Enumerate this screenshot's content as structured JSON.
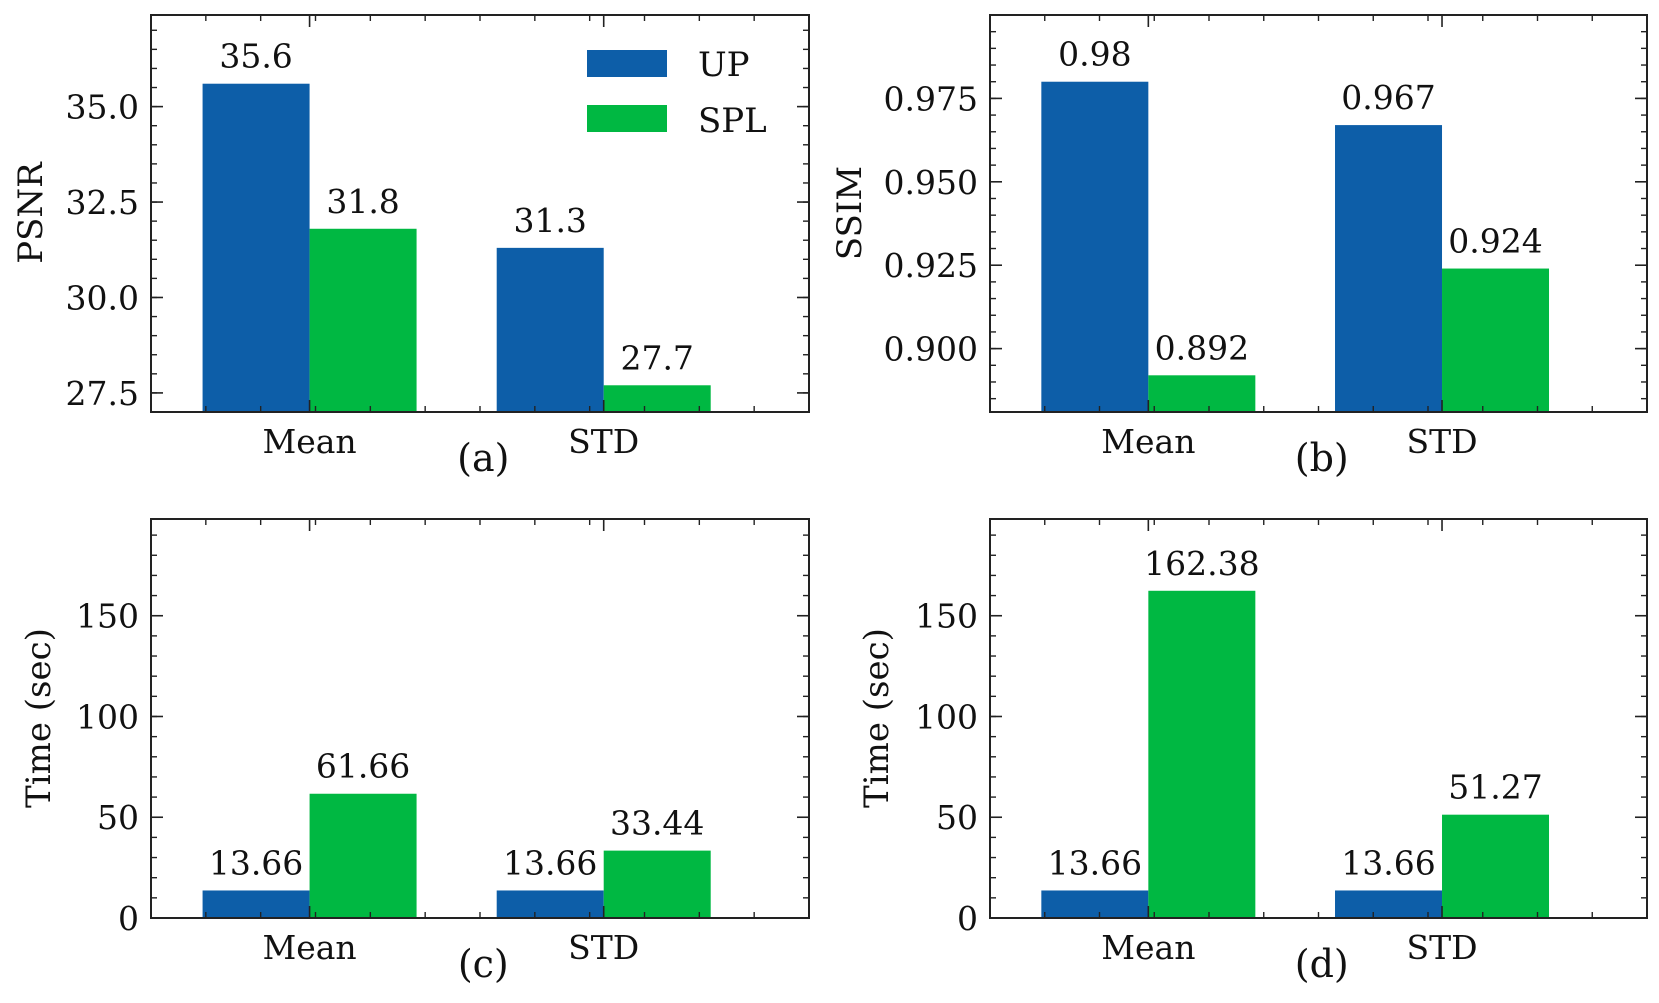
{
  "figure": {
    "legend": [
      {
        "label": "UP",
        "color": "#0d5ea8"
      },
      {
        "label": "SPL",
        "color": "#00b842"
      }
    ]
  },
  "chart_data": [
    {
      "type": "bar",
      "panel_label": "(a)",
      "ylabel": "PSNR",
      "categories": [
        "Mean",
        "STD"
      ],
      "series": [
        {
          "name": "UP",
          "values": [
            35.6,
            31.3
          ],
          "labels": [
            "35.6",
            "31.3"
          ]
        },
        {
          "name": "SPL",
          "values": [
            31.8,
            27.7
          ],
          "labels": [
            "31.8",
            "27.7"
          ]
        }
      ],
      "ylim": [
        27.0,
        37.4
      ],
      "yticks": [
        27.5,
        30.0,
        32.5,
        35.0
      ],
      "ytick_labels": [
        "27.5",
        "30.0",
        "32.5",
        "35.0"
      ],
      "yminor": 0.5,
      "legend": "top-right"
    },
    {
      "type": "bar",
      "panel_label": "(b)",
      "ylabel": "SSIM",
      "categories": [
        "Mean",
        "STD"
      ],
      "series": [
        {
          "name": "UP",
          "values": [
            0.98,
            0.967
          ],
          "labels": [
            "0.98",
            "0.967"
          ]
        },
        {
          "name": "SPL",
          "values": [
            0.892,
            0.924
          ],
          "labels": [
            "0.892",
            "0.924"
          ]
        }
      ],
      "ylim": [
        0.881,
        1.0
      ],
      "yticks": [
        0.9,
        0.925,
        0.95,
        0.975
      ],
      "ytick_labels": [
        "0.900",
        "0.925",
        "0.950",
        "0.975"
      ],
      "yminor": 0.005
    },
    {
      "type": "bar",
      "panel_label": "(c)",
      "ylabel": "Time (sec)",
      "categories": [
        "Mean",
        "STD"
      ],
      "series": [
        {
          "name": "UP",
          "values": [
            13.66,
            13.66
          ],
          "labels": [
            "13.66",
            "13.66"
          ]
        },
        {
          "name": "SPL",
          "values": [
            61.66,
            33.44
          ],
          "labels": [
            "61.66",
            "33.44"
          ]
        }
      ],
      "ylim": [
        0,
        198
      ],
      "yticks": [
        0,
        50,
        100,
        150
      ],
      "ytick_labels": [
        "0",
        "50",
        "100",
        "150"
      ],
      "yminor": 10
    },
    {
      "type": "bar",
      "panel_label": "(d)",
      "ylabel": "Time (sec)",
      "categories": [
        "Mean",
        "STD"
      ],
      "series": [
        {
          "name": "UP",
          "values": [
            13.66,
            13.66
          ],
          "labels": [
            "13.66",
            "13.66"
          ]
        },
        {
          "name": "SPL",
          "values": [
            162.38,
            51.27
          ],
          "labels": [
            "162.38",
            "51.27"
          ]
        }
      ],
      "ylim": [
        0,
        198
      ],
      "yticks": [
        0,
        50,
        100,
        150
      ],
      "ytick_labels": [
        "0",
        "50",
        "100",
        "150"
      ],
      "yminor": 10
    }
  ]
}
